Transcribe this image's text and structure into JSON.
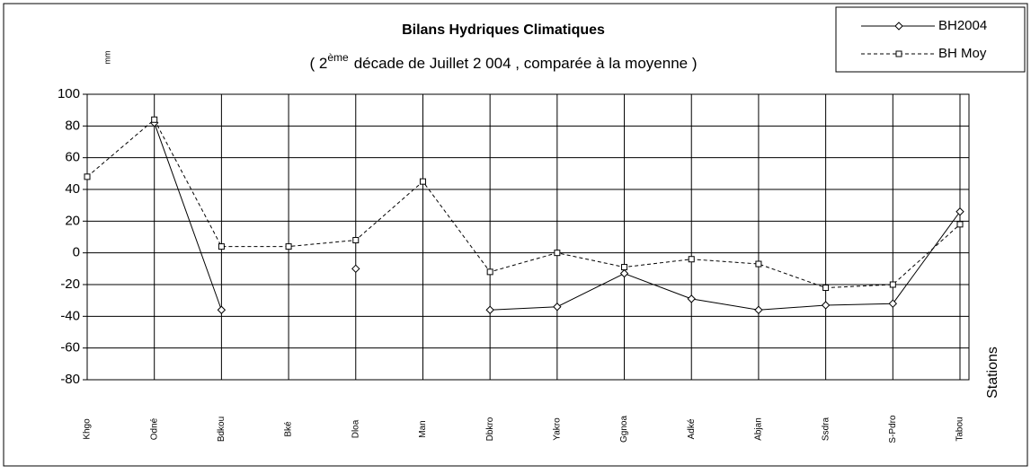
{
  "chart_data": {
    "type": "line",
    "title": "Bilans Hydriques Climatiques",
    "subtitle": [
      "( 2",
      "ème",
      "décade   de Juillet  2 004 , comparée à la moyenne )"
    ],
    "y_label": "mm",
    "x_label": "Stations",
    "categories": [
      "Khgo",
      "Odné",
      "Bdkou",
      "Bké",
      "Dloa",
      "Man",
      "Dbkro",
      "Yakro",
      "Ggnoa",
      "Adké",
      "Abjan",
      "Ssdra",
      "S-Pdro",
      "Tabou"
    ],
    "series": [
      {
        "name": "BH2004",
        "color": "#000000",
        "dash": false,
        "marker": "diamond",
        "values": [
          null,
          82,
          -36,
          null,
          -10,
          null,
          -36,
          -34,
          -13,
          -29,
          -36,
          -33,
          -32,
          26
        ]
      },
      {
        "name": "BH Moy",
        "color": "#000000",
        "dash": true,
        "marker": "square",
        "values": [
          48,
          84,
          4,
          4,
          8,
          45,
          -12,
          0,
          -9,
          -4,
          -7,
          -22,
          -20,
          18
        ]
      }
    ],
    "ylim": [
      -80,
      100
    ],
    "yticks": [
      -80,
      -60,
      -40,
      -20,
      0,
      20,
      40,
      60,
      80,
      100
    ],
    "grid": true,
    "legend": "top-right"
  }
}
